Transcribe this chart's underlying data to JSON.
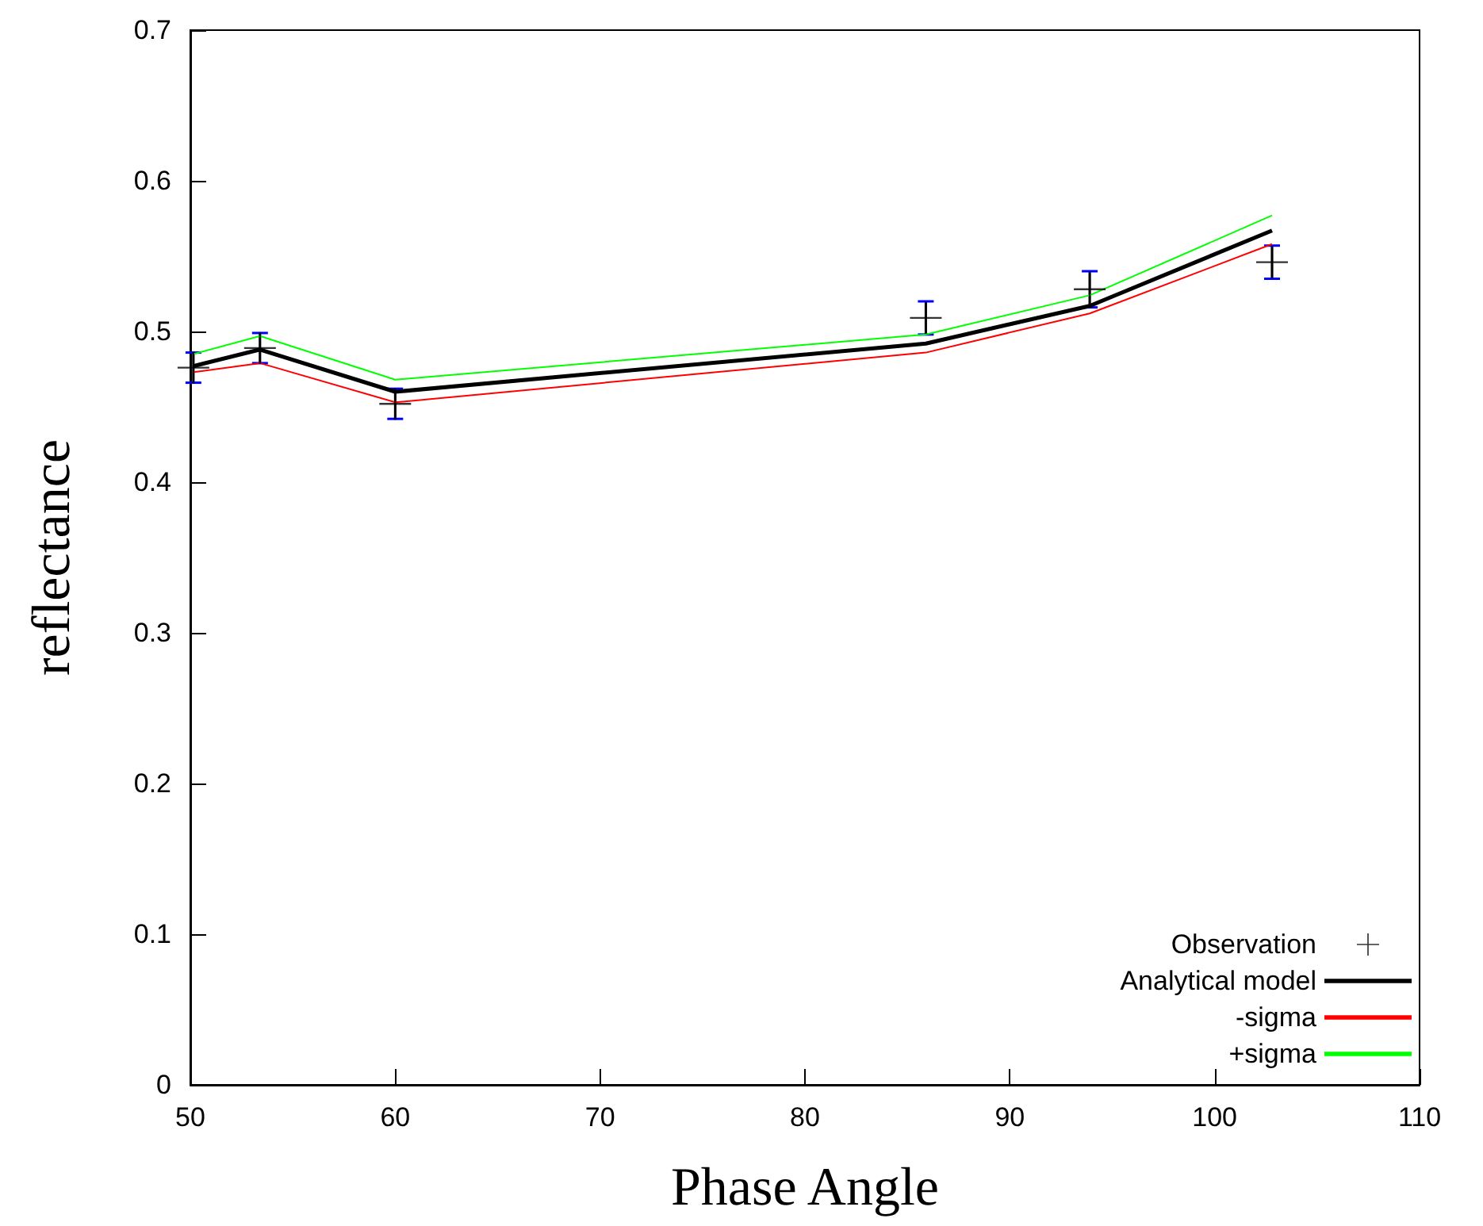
{
  "chart_data": {
    "type": "line",
    "xlabel": "Phase Angle",
    "ylabel": "reflectance",
    "xlim": [
      50,
      110
    ],
    "xticks": [
      50,
      60,
      70,
      80,
      90,
      100,
      110
    ],
    "ylim": [
      0,
      0.7
    ],
    "yticks": [
      0,
      0.1,
      0.2,
      0.3,
      0.4,
      0.5,
      0.6,
      0.7
    ],
    "legend": "bottom right",
    "grid": false,
    "x": [
      50.15,
      53.4,
      60,
      85.9,
      93.9,
      102.8
    ],
    "series": [
      {
        "name": "Observation",
        "type": "scatter",
        "marker": "cross",
        "color": "#000000",
        "values": [
          0.476,
          0.489,
          0.452,
          0.509,
          0.528,
          0.546
        ],
        "errors": [
          0.01,
          0.01,
          0.01,
          0.011,
          0.012,
          0.011
        ]
      },
      {
        "name": "Analytical model",
        "marker": "none",
        "color": "#000000",
        "values": [
          0.477,
          0.488,
          0.46,
          0.492,
          0.517,
          0.567
        ]
      },
      {
        "name": "-sigma",
        "marker": "none",
        "color": "#ff0000",
        "values": [
          0.473,
          0.479,
          0.453,
          0.486,
          0.512,
          0.558
        ]
      },
      {
        "name": "+sigma",
        "marker": "none",
        "color": "#00ff00",
        "values": [
          0.485,
          0.497,
          0.468,
          0.498,
          0.524,
          0.577
        ]
      }
    ]
  }
}
